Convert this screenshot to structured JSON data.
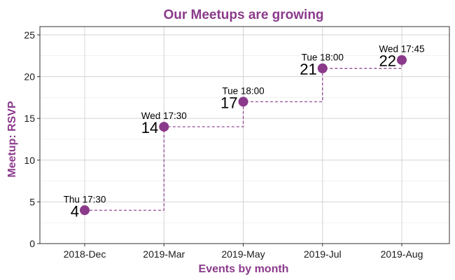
{
  "chart_data": {
    "type": "line",
    "title": "Our Meetups are growing",
    "xlabel": "Events by month",
    "ylabel": "Meetup: RSVP",
    "categories": [
      "2018-Dec",
      "2019-Mar",
      "2019-May",
      "2019-Jul",
      "2019-Aug"
    ],
    "values": [
      4,
      14,
      17,
      21,
      22
    ],
    "point_labels": [
      "Thu 17:30",
      "Wed 17:30",
      "Tue 18:00",
      "Tue 18:00",
      "Wed 17:45"
    ],
    "ylim": [
      0,
      26
    ],
    "yticks": [
      0,
      5,
      10,
      15,
      20,
      25
    ],
    "line_style": "dashed step",
    "grid": true,
    "accent_color": "#8b3a8b"
  }
}
